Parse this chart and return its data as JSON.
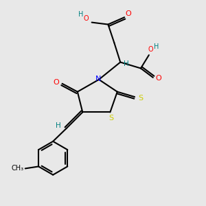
{
  "bg_color": "#e8e8e8",
  "atom_colors": {
    "C": "#000000",
    "O": "#ff0000",
    "N": "#0000ff",
    "S": "#cccc00",
    "H": "#008080"
  }
}
